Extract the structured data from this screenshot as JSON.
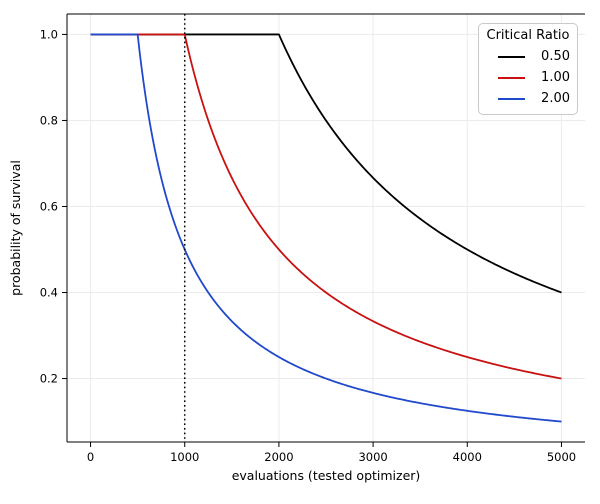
{
  "figure": {
    "background": "#ffffff",
    "spine_color": "#000000",
    "grid_color": "#ebebeb"
  },
  "chart_data": {
    "type": "line",
    "title": "",
    "xlabel": "evaluations (tested optimizer)",
    "ylabel": "probability of survival",
    "xlim": [
      -250,
      5250
    ],
    "ylim": [
      0.0525,
      1.0475
    ],
    "x_ticks": [
      0,
      1000,
      2000,
      3000,
      4000,
      5000
    ],
    "x_tick_labels": [
      "0",
      "1000",
      "2000",
      "3000",
      "4000",
      "5000"
    ],
    "y_ticks": [
      0.2,
      0.4,
      0.6,
      0.8,
      1.0
    ],
    "y_tick_labels": [
      "0.2",
      "0.4",
      "0.6",
      "0.8",
      "1.0"
    ],
    "grid": true,
    "legend": {
      "title": "Critical Ratio",
      "position": "upper right",
      "entries": [
        {
          "label": "0.50",
          "color": "#000000"
        },
        {
          "label": "1.00",
          "color": "#c81111"
        },
        {
          "label": "2.00",
          "color": "#2149cc"
        }
      ]
    },
    "vline": {
      "x": 1000,
      "style": "dotted",
      "color": "#000000"
    },
    "line_width": 1.8,
    "series": [
      {
        "name": "0.50",
        "color": "#000000",
        "survival_threshold": 2000,
        "formula": "y = min(1, 2000/x)",
        "points": [
          [
            0,
            1.0
          ],
          [
            1000,
            1.0
          ],
          [
            2000,
            1.0
          ],
          [
            2250,
            0.889
          ],
          [
            2500,
            0.8
          ],
          [
            2750,
            0.727
          ],
          [
            3000,
            0.667
          ],
          [
            3250,
            0.615
          ],
          [
            3500,
            0.571
          ],
          [
            3750,
            0.533
          ],
          [
            4000,
            0.5
          ],
          [
            4250,
            0.471
          ],
          [
            4500,
            0.444
          ],
          [
            4750,
            0.421
          ],
          [
            5000,
            0.4
          ]
        ]
      },
      {
        "name": "1.00",
        "color": "#c81111",
        "survival_threshold": 1000,
        "formula": "y = min(1, 1000/x)",
        "points": [
          [
            0,
            1.0
          ],
          [
            500,
            1.0
          ],
          [
            1000,
            1.0
          ],
          [
            1100,
            0.909
          ],
          [
            1250,
            0.8
          ],
          [
            1500,
            0.667
          ],
          [
            1750,
            0.571
          ],
          [
            2000,
            0.5
          ],
          [
            2250,
            0.444
          ],
          [
            2500,
            0.4
          ],
          [
            2750,
            0.364
          ],
          [
            3000,
            0.333
          ],
          [
            3500,
            0.286
          ],
          [
            4000,
            0.25
          ],
          [
            4500,
            0.222
          ],
          [
            5000,
            0.2
          ]
        ]
      },
      {
        "name": "2.00",
        "color": "#2149cc",
        "survival_threshold": 500,
        "formula": "y = min(1, 500/x)",
        "points": [
          [
            0,
            1.0
          ],
          [
            250,
            1.0
          ],
          [
            500,
            1.0
          ],
          [
            550,
            0.909
          ],
          [
            625,
            0.8
          ],
          [
            750,
            0.667
          ],
          [
            875,
            0.571
          ],
          [
            1000,
            0.5
          ],
          [
            1250,
            0.4
          ],
          [
            1500,
            0.333
          ],
          [
            1750,
            0.286
          ],
          [
            2000,
            0.25
          ],
          [
            2500,
            0.2
          ],
          [
            3000,
            0.167
          ],
          [
            3500,
            0.143
          ],
          [
            4000,
            0.125
          ],
          [
            4500,
            0.111
          ],
          [
            5000,
            0.1
          ]
        ]
      }
    ]
  }
}
